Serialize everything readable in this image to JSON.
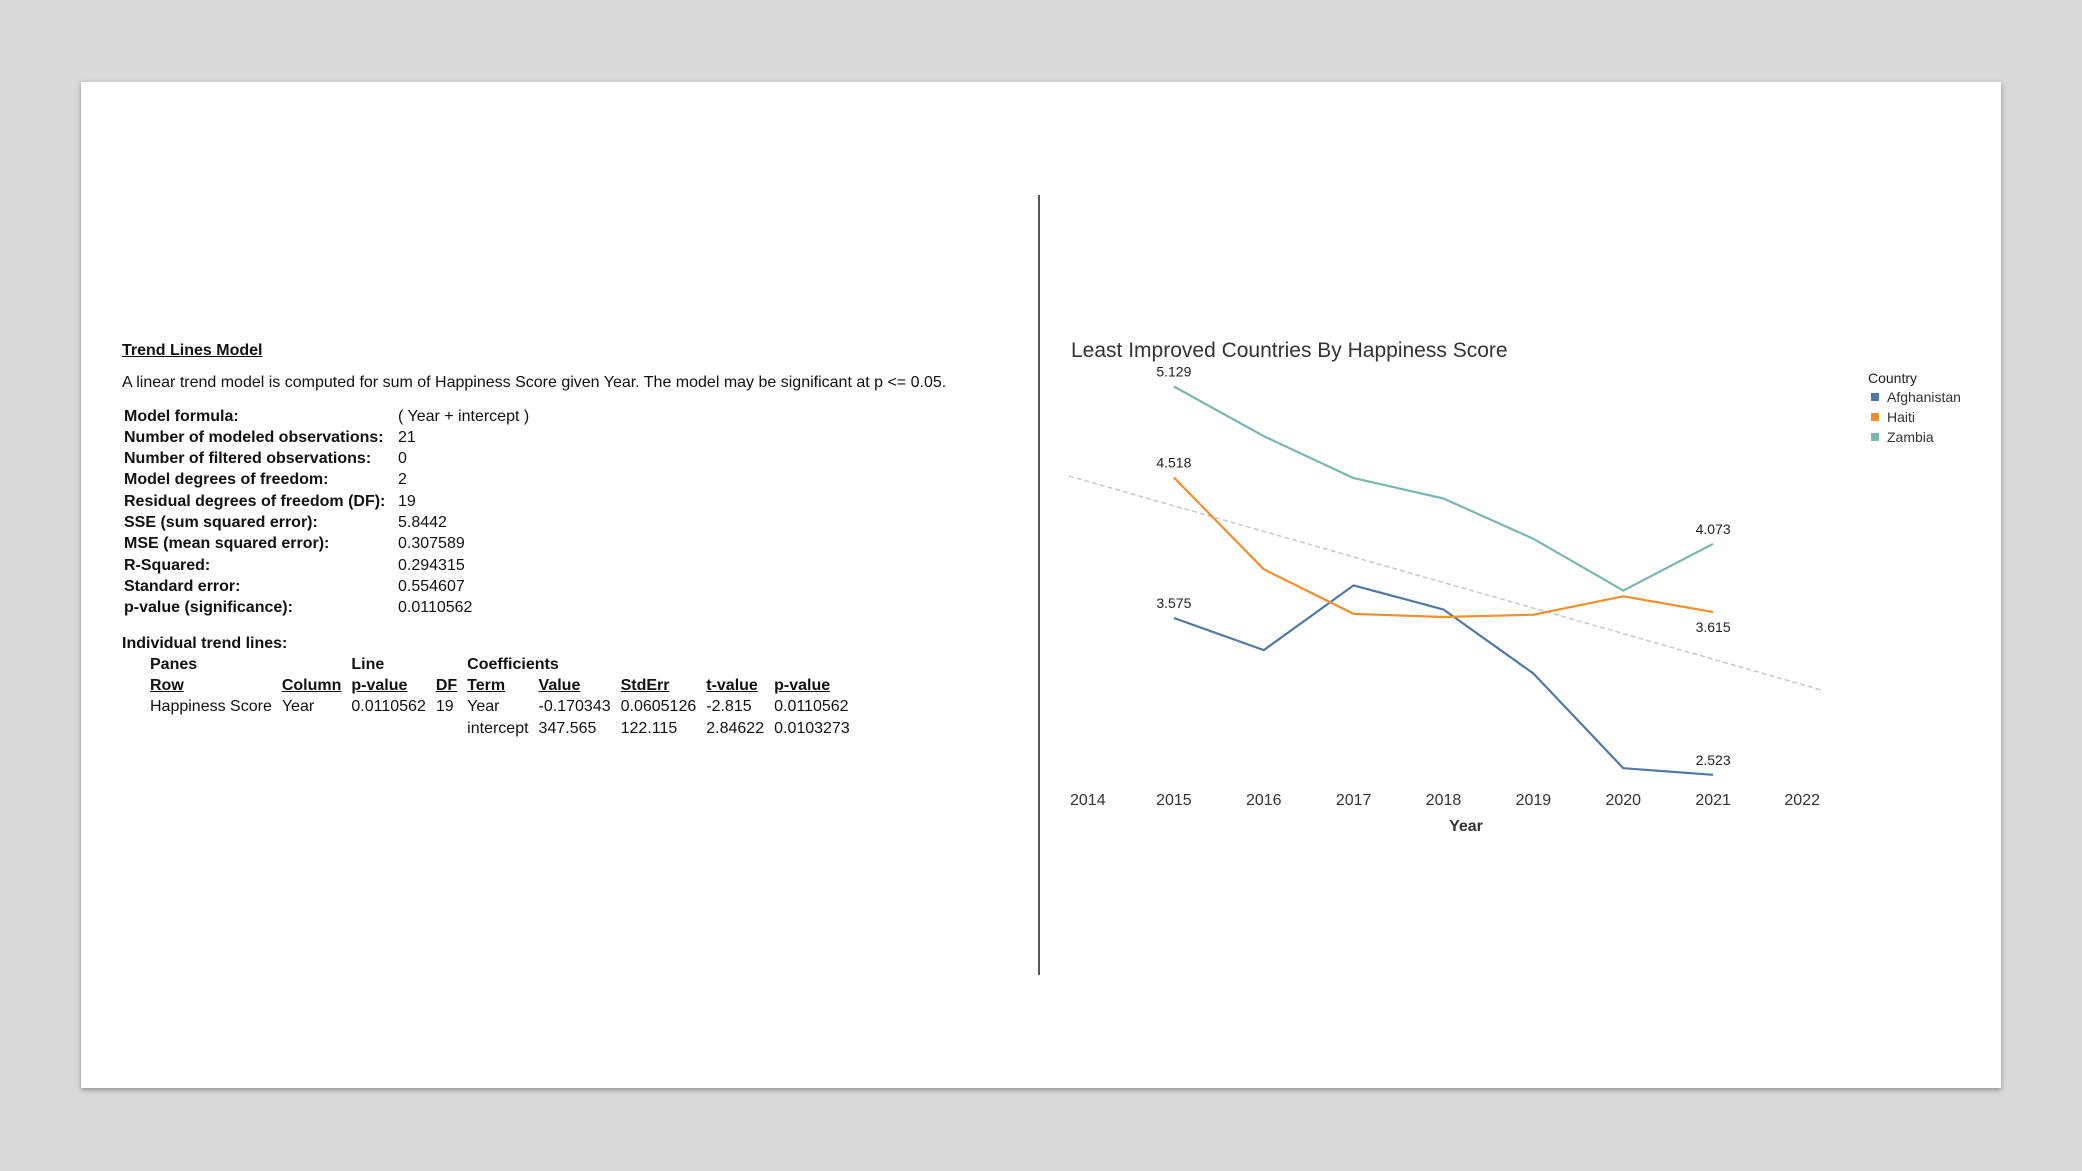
{
  "report": {
    "title": "Trend Lines Model",
    "description": "A linear trend model is computed for sum of Happiness Score given Year.  The model may be significant at p <= 0.05.",
    "stats": [
      {
        "label": "Model formula:",
        "value": "( Year + intercept )"
      },
      {
        "label": "Number of modeled observations:",
        "value": "21"
      },
      {
        "label": "Number of filtered observations:",
        "value": "0"
      },
      {
        "label": "Model degrees of freedom:",
        "value": "2"
      },
      {
        "label": "Residual degrees of freedom (DF):",
        "value": "19"
      },
      {
        "label": "SSE (sum squared error):",
        "value": "5.8442"
      },
      {
        "label": "MSE (mean squared error):",
        "value": "0.307589"
      },
      {
        "label": "R-Squared:",
        "value": "0.294315"
      },
      {
        "label": "Standard error:",
        "value": "0.554607"
      },
      {
        "label": "p-value (significance):",
        "value": "0.0110562"
      }
    ],
    "individual": {
      "heading": "Individual trend lines:",
      "group_headers": {
        "panes": "Panes",
        "line": "Line",
        "coefficients": "Coefficients"
      },
      "columns": [
        "Row",
        "Column",
        "p-value",
        "DF",
        "Term",
        "Value",
        "StdErr",
        "t-value",
        "p-value"
      ],
      "rows": [
        [
          "Happiness Score",
          "Year",
          "0.0110562",
          "19",
          "Year",
          "-0.170343",
          "0.0605126",
          "-2.815",
          "0.0110562"
        ],
        [
          "",
          "",
          "",
          "",
          "intercept",
          "347.565",
          "122.115",
          "2.84622",
          "0.0103273"
        ]
      ]
    }
  },
  "chart_data": {
    "type": "line",
    "title": "Least Improved Countries By Happiness Score",
    "xlabel": "Year",
    "ylabel": "",
    "x_ticks": [
      "2014",
      "2015",
      "2016",
      "2017",
      "2018",
      "2019",
      "2020",
      "2021",
      "2022"
    ],
    "xlim": [
      2014,
      2022
    ],
    "ylim": [
      2.3,
      5.3
    ],
    "grid": false,
    "legend": {
      "title": "Country",
      "position": "top-right"
    },
    "x": [
      2015,
      2016,
      2017,
      2018,
      2019,
      2020,
      2021
    ],
    "series": [
      {
        "name": "Afghanistan",
        "color": "#4e79a7",
        "values": [
          3.575,
          3.36,
          3.794,
          3.632,
          3.203,
          2.567,
          2.523
        ],
        "labels": [
          {
            "x": 2015,
            "text": "3.575",
            "pos": "above"
          },
          {
            "x": 2021,
            "text": "2.523",
            "pos": "above"
          }
        ]
      },
      {
        "name": "Haiti",
        "color": "#f28e2b",
        "values": [
          4.518,
          3.902,
          3.603,
          3.582,
          3.597,
          3.721,
          3.615
        ],
        "labels": [
          {
            "x": 2015,
            "text": "4.518",
            "pos": "above"
          },
          {
            "x": 2021,
            "text": "3.615",
            "pos": "below"
          }
        ]
      },
      {
        "name": "Zambia",
        "color": "#76b7b2",
        "values": [
          5.129,
          4.795,
          4.514,
          4.377,
          4.107,
          3.759,
          4.073
        ],
        "labels": [
          {
            "x": 2015,
            "text": "5.129",
            "pos": "above"
          },
          {
            "x": 2021,
            "text": "4.073",
            "pos": "above"
          }
        ]
      }
    ],
    "trend_line": {
      "slope": -0.170343,
      "intercept": 347.565,
      "x_range": [
        2014,
        2022
      ],
      "color": "#c8c8c8"
    }
  }
}
